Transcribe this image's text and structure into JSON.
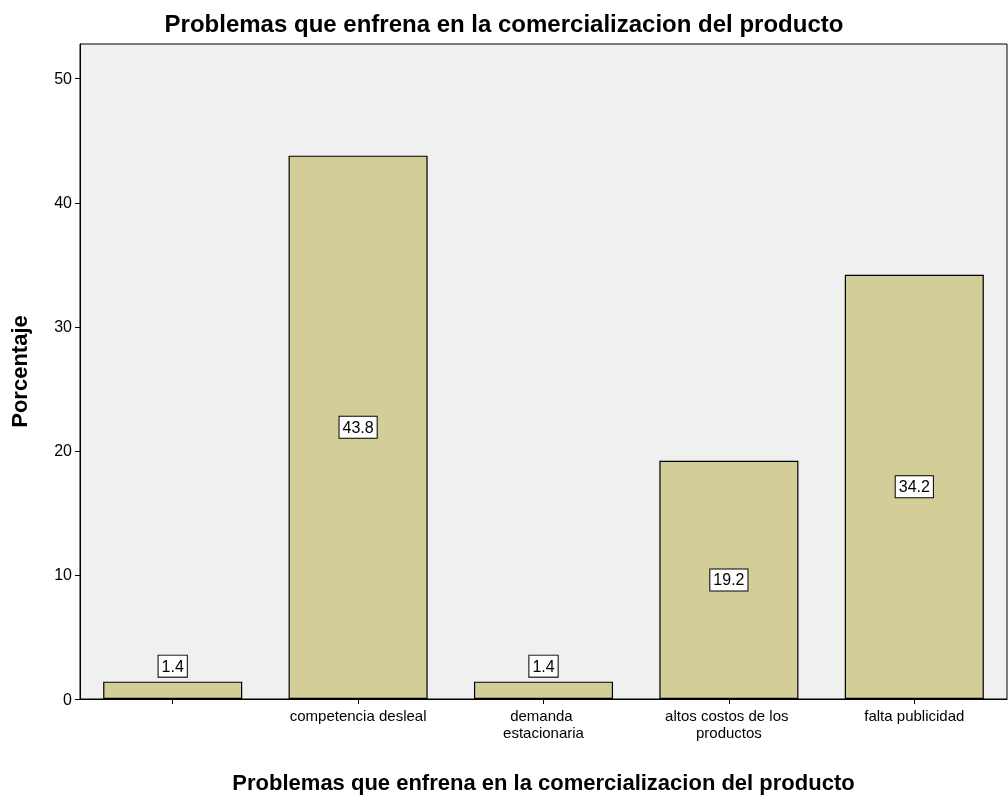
{
  "chart_data": {
    "type": "bar",
    "title": "Problemas que enfrena en la comercializacion del producto",
    "xlabel": "Problemas que enfrena en la comercializacion del producto",
    "ylabel": "Porcentaje",
    "categories": [
      null,
      "competencia desleal",
      "demanda estacionaria",
      "altos costos de los productos",
      "falta publicidad"
    ],
    "values": [
      1.4,
      43.8,
      1.4,
      19.2,
      34.2
    ],
    "color": "#d3ce98",
    "ylim": [
      0,
      52.8
    ],
    "yticks": [
      0,
      10,
      20,
      30,
      40,
      50
    ],
    "grid": false,
    "data_labels": true
  }
}
